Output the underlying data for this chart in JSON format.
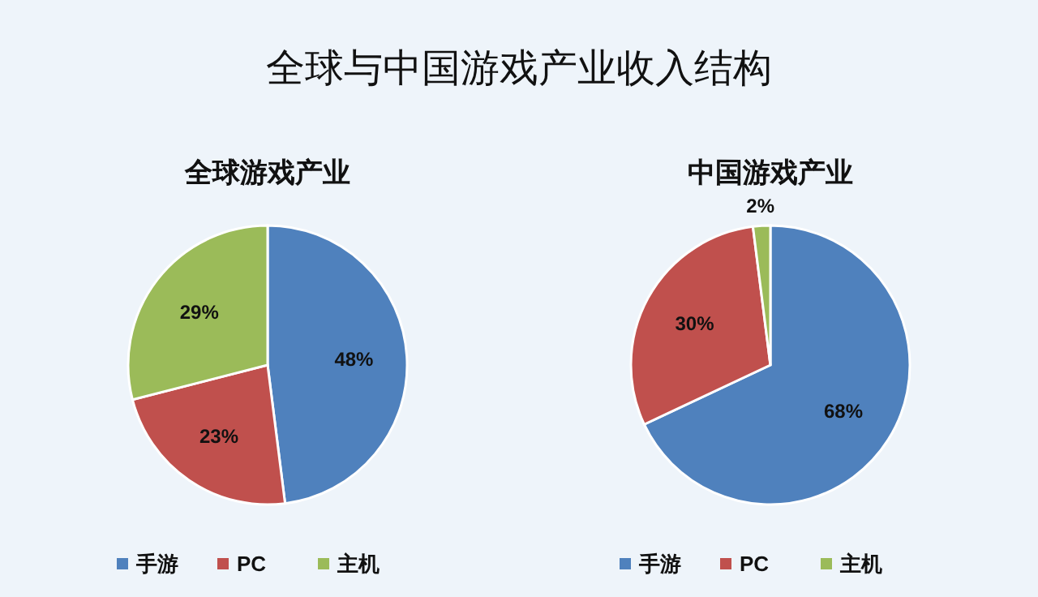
{
  "chart_data": [
    {
      "type": "pie",
      "title": "全球游戏产业",
      "annotations": [
        "全球与中国游戏产业收入结构"
      ],
      "categories": [
        "手游",
        "PC",
        "主机"
      ],
      "values": [
        48,
        23,
        29
      ],
      "colors": [
        "#4f81bd",
        "#c0504d",
        "#9bbb59"
      ],
      "value_labels": [
        "48%",
        "23%",
        "29%"
      ],
      "legend": "bottom"
    },
    {
      "type": "pie",
      "title": "中国游戏产业",
      "categories": [
        "手游",
        "PC",
        "主机"
      ],
      "values": [
        68,
        30,
        2
      ],
      "colors": [
        "#4f81bd",
        "#c0504d",
        "#9bbb59"
      ],
      "value_labels": [
        "68%",
        "30%",
        "2%"
      ],
      "legend": "bottom"
    }
  ]
}
